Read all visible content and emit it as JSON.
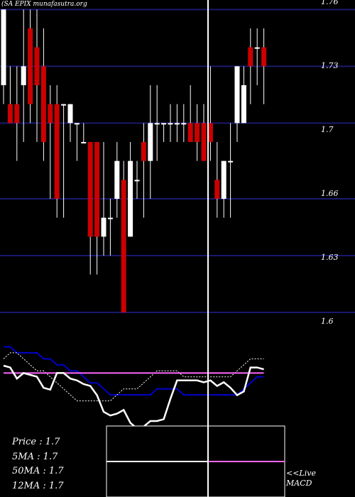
{
  "header": {
    "ticker": "(SA EPIX munafasutra.org"
  },
  "colors": {
    "background": "#000000",
    "grid": "#1a1a6e",
    "up_candle": "#ffffff",
    "down_candle": "#cc0000",
    "ma_fast": "#ffffff",
    "ma_slow": "#0000cc",
    "ma_dotted": "#ffffff",
    "macd_line": "#ffffff",
    "signal_line": "#ff66ff"
  },
  "chart_data": {
    "type": "candlestick",
    "ylim": [
      1.585,
      1.765
    ],
    "yticks": [
      "1.76",
      "1.73",
      "1.7",
      "1.66",
      "1.63",
      "1.6"
    ],
    "candles": [
      {
        "o": 1.72,
        "h": 1.76,
        "l": 1.71,
        "c": 1.76
      },
      {
        "o": 1.71,
        "h": 1.73,
        "l": 1.7,
        "c": 1.7
      },
      {
        "o": 1.71,
        "h": 1.73,
        "l": 1.68,
        "c": 1.7
      },
      {
        "o": 1.72,
        "h": 1.76,
        "l": 1.69,
        "c": 1.73
      },
      {
        "o": 1.75,
        "h": 1.76,
        "l": 1.7,
        "c": 1.71
      },
      {
        "o": 1.74,
        "h": 1.76,
        "l": 1.69,
        "c": 1.72
      },
      {
        "o": 1.73,
        "h": 1.75,
        "l": 1.68,
        "c": 1.69
      },
      {
        "o": 1.71,
        "h": 1.72,
        "l": 1.66,
        "c": 1.7
      },
      {
        "o": 1.71,
        "h": 1.72,
        "l": 1.65,
        "c": 1.66
      },
      {
        "o": 1.71,
        "h": 1.71,
        "l": 1.65,
        "c": 1.71
      },
      {
        "o": 1.7,
        "h": 1.71,
        "l": 1.69,
        "c": 1.71
      },
      {
        "o": 1.7,
        "h": 1.7,
        "l": 1.68,
        "c": 1.7
      },
      {
        "o": 1.69,
        "h": 1.7,
        "l": 1.69,
        "c": 1.69
      },
      {
        "o": 1.69,
        "h": 1.69,
        "l": 1.62,
        "c": 1.64
      },
      {
        "o": 1.69,
        "h": 1.69,
        "l": 1.62,
        "c": 1.64
      },
      {
        "o": 1.64,
        "h": 1.69,
        "l": 1.63,
        "c": 1.65
      },
      {
        "o": 1.65,
        "h": 1.66,
        "l": 1.63,
        "c": 1.65
      },
      {
        "o": 1.66,
        "h": 1.69,
        "l": 1.65,
        "c": 1.68
      },
      {
        "o": 1.67,
        "h": 1.68,
        "l": 1.6,
        "c": 1.6
      },
      {
        "o": 1.64,
        "h": 1.69,
        "l": 1.64,
        "c": 1.68
      },
      {
        "o": 1.67,
        "h": 1.68,
        "l": 1.66,
        "c": 1.67
      },
      {
        "o": 1.69,
        "h": 1.7,
        "l": 1.65,
        "c": 1.68
      },
      {
        "o": 1.68,
        "h": 1.72,
        "l": 1.66,
        "c": 1.7
      },
      {
        "o": 1.7,
        "h": 1.72,
        "l": 1.68,
        "c": 1.7
      },
      {
        "o": 1.7,
        "h": 1.7,
        "l": 1.69,
        "c": 1.7
      },
      {
        "o": 1.7,
        "h": 1.71,
        "l": 1.69,
        "c": 1.7
      },
      {
        "o": 1.7,
        "h": 1.71,
        "l": 1.69,
        "c": 1.7
      },
      {
        "o": 1.7,
        "h": 1.71,
        "l": 1.69,
        "c": 1.7
      },
      {
        "o": 1.7,
        "h": 1.72,
        "l": 1.69,
        "c": 1.69
      },
      {
        "o": 1.7,
        "h": 1.71,
        "l": 1.68,
        "c": 1.69
      },
      {
        "o": 1.7,
        "h": 1.71,
        "l": 1.68,
        "c": 1.68
      },
      {
        "o": 1.7,
        "h": 1.73,
        "l": 1.68,
        "c": 1.69
      },
      {
        "o": 1.67,
        "h": 1.69,
        "l": 1.65,
        "c": 1.66
      },
      {
        "o": 1.66,
        "h": 1.68,
        "l": 1.65,
        "c": 1.68
      },
      {
        "o": 1.68,
        "h": 1.7,
        "l": 1.65,
        "c": 1.68
      },
      {
        "o": 1.7,
        "h": 1.73,
        "l": 1.69,
        "c": 1.73
      },
      {
        "o": 1.7,
        "h": 1.73,
        "l": 1.7,
        "c": 1.72
      },
      {
        "o": 1.74,
        "h": 1.75,
        "l": 1.71,
        "c": 1.73
      },
      {
        "o": 1.74,
        "h": 1.75,
        "l": 1.72,
        "c": 1.74
      },
      {
        "o": 1.74,
        "h": 1.75,
        "l": 1.71,
        "c": 1.73
      }
    ],
    "ma_fast": [
      1.695,
      1.695,
      1.705,
      1.705,
      1.705,
      1.7,
      1.695,
      1.695,
      1.695,
      1.685,
      1.67,
      1.68,
      1.69,
      1.68,
      1.67,
      1.665,
      1.655,
      1.655,
      1.655,
      1.66,
      1.66,
      1.655,
      1.655,
      1.665,
      1.675,
      1.675,
      1.68,
      1.685,
      1.685,
      1.685,
      1.685,
      1.68,
      1.685,
      1.685,
      1.675,
      1.69,
      1.69,
      1.7,
      1.7,
      1.695
    ],
    "ma_slow": [
      1.705,
      1.705,
      1.7,
      1.7,
      1.7,
      1.7,
      1.695,
      1.695,
      1.69,
      1.69,
      1.685,
      1.685,
      1.68,
      1.675,
      1.675,
      1.67,
      1.665,
      1.665,
      1.665,
      1.665,
      1.665,
      1.665,
      1.665,
      1.67,
      1.67,
      1.67,
      1.67,
      1.665,
      1.665,
      1.665,
      1.665,
      1.665,
      1.665,
      1.665,
      1.665,
      1.665,
      1.67,
      1.675,
      1.68,
      1.68
    ],
    "ma_dotted": [
      1.695,
      1.7,
      1.7,
      1.695,
      1.69,
      1.685,
      1.685,
      1.68,
      1.675,
      1.67,
      1.665,
      1.66,
      1.66,
      1.66,
      1.66,
      1.66,
      1.66,
      1.665,
      1.67,
      1.67,
      1.67,
      1.675,
      1.68,
      1.685,
      1.685,
      1.685,
      1.685,
      1.68,
      1.68,
      1.68,
      1.68,
      1.68,
      1.68,
      1.68,
      1.68,
      1.685,
      1.69,
      1.695,
      1.695,
      1.695
    ],
    "macd": [
      1.0,
      0.99,
      0.93,
      0.96,
      0.95,
      0.94,
      0.88,
      0.87,
      0.96,
      0.96,
      0.93,
      0.92,
      0.9,
      0.89,
      0.84,
      0.75,
      0.73,
      0.74,
      0.76,
      0.69,
      0.66,
      0.67,
      0.7,
      0.7,
      0.71,
      0.82,
      0.92,
      0.92,
      0.92,
      0.92,
      0.91,
      0.92,
      0.89,
      0.91,
      0.88,
      0.84,
      0.86,
      0.99,
      0.99,
      0.98
    ],
    "signal": [
      0.96,
      0.96,
      0.96,
      0.96,
      0.96,
      0.96,
      0.96,
      0.96,
      0.96,
      0.96,
      0.96,
      0.96,
      0.96,
      0.96,
      0.96,
      0.96,
      0.96,
      0.96,
      0.96,
      0.96,
      0.96,
      0.96,
      0.96,
      0.96,
      0.96,
      0.96,
      0.96,
      0.96,
      0.96,
      0.96,
      0.96,
      0.96,
      0.96,
      0.96,
      0.96,
      0.96,
      0.96,
      0.96,
      0.96,
      0.96
    ]
  },
  "stats": {
    "price": "Price   : 1.7",
    "ma5": "5MA : 1.7",
    "ma50": "50MA : 1.7",
    "ma12": "12MA : 1.7"
  },
  "macd_label": {
    "line1": "<<Live",
    "line2": "MACD"
  }
}
